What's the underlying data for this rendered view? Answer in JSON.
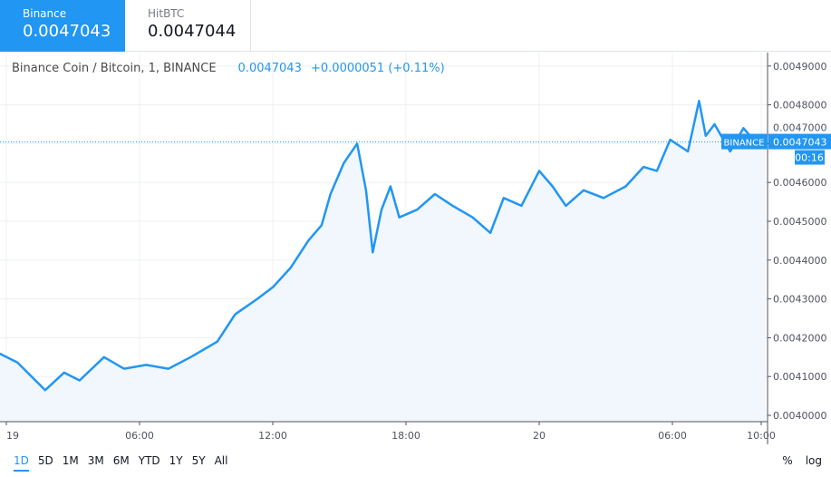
{
  "exchanges": [
    {
      "name": "Binance",
      "price": "0.0047043",
      "active": true
    },
    {
      "name": "HitBTC",
      "price": "0.0047044",
      "active": false
    }
  ],
  "legend": {
    "symbol": "Binance Coin / Bitcoin, 1, BINANCE",
    "last": "0.0047043",
    "change": "+0.0000051 (+0.11%)"
  },
  "price_label": {
    "exchange": "BINANCE",
    "value": "0.0047043",
    "countdown": "00:16"
  },
  "ranges": [
    "1D",
    "5D",
    "1M",
    "3M",
    "6M",
    "YTD",
    "1Y",
    "5Y",
    "All"
  ],
  "selected_range": "1D",
  "scale_options": [
    "%",
    "log"
  ],
  "colors": {
    "line": "#2196f3",
    "fill": "#f1f7fd",
    "grid": "#eef0f3"
  },
  "chart_data": {
    "type": "area",
    "ylim": [
      0.00398,
      0.00494
    ],
    "y_ticks": [
      "0.0040000",
      "0.0041000",
      "0.0042000",
      "0.0043000",
      "0.0044000",
      "0.0045000",
      "0.0046000",
      "0.0047000",
      "0.0048000",
      "0.0049000"
    ],
    "x_ticks": [
      {
        "label": "19",
        "t": "19 00:00"
      },
      {
        "label": "06:00",
        "t": "19 06:00"
      },
      {
        "label": "12:00",
        "t": "19 12:00"
      },
      {
        "label": "18:00",
        "t": "19 18:00"
      },
      {
        "label": "20",
        "t": "20 00:00"
      },
      {
        "label": "06:00",
        "t": "20 06:00"
      },
      {
        "label": "10:00",
        "t": "20 10:00"
      }
    ],
    "points": [
      [
        "18 23:42",
        0.004159
      ],
      [
        "19 00:30",
        0.004136
      ],
      [
        "19 01:45",
        0.004065
      ],
      [
        "19 02:36",
        0.00411
      ],
      [
        "19 03:18",
        0.00409
      ],
      [
        "19 04:24",
        0.00415
      ],
      [
        "19 05:18",
        0.00412
      ],
      [
        "19 06:18",
        0.00413
      ],
      [
        "19 07:18",
        0.00412
      ],
      [
        "19 08:18",
        0.00415
      ],
      [
        "19 09:30",
        0.00419
      ],
      [
        "19 10:18",
        0.00426
      ],
      [
        "19 11:18",
        0.0043
      ],
      [
        "19 12:00",
        0.00433
      ],
      [
        "19 12:48",
        0.00438
      ],
      [
        "19 13:36",
        0.00445
      ],
      [
        "19 14:12",
        0.00449
      ],
      [
        "19 14:36",
        0.00457
      ],
      [
        "19 15:12",
        0.00465
      ],
      [
        "19 15:48",
        0.0047
      ],
      [
        "19 16:12",
        0.00458
      ],
      [
        "19 16:30",
        0.00442
      ],
      [
        "19 16:54",
        0.00453
      ],
      [
        "19 17:18",
        0.00459
      ],
      [
        "19 17:42",
        0.00451
      ],
      [
        "19 18:30",
        0.00453
      ],
      [
        "19 19:18",
        0.00457
      ],
      [
        "19 20:06",
        0.00454
      ],
      [
        "19 21:00",
        0.00451
      ],
      [
        "19 21:48",
        0.00447
      ],
      [
        "19 22:24",
        0.00456
      ],
      [
        "19 23:12",
        0.00454
      ],
      [
        "20 00:00",
        0.00463
      ],
      [
        "20 00:36",
        0.00459
      ],
      [
        "20 01:12",
        0.00454
      ],
      [
        "20 02:00",
        0.00458
      ],
      [
        "20 02:54",
        0.00456
      ],
      [
        "20 03:54",
        0.00459
      ],
      [
        "20 04:42",
        0.00464
      ],
      [
        "20 05:18",
        0.00463
      ],
      [
        "20 05:54",
        0.00471
      ],
      [
        "20 06:42",
        0.00468
      ],
      [
        "20 07:12",
        0.00481
      ],
      [
        "20 07:30",
        0.00472
      ],
      [
        "20 07:54",
        0.00475
      ],
      [
        "20 08:36",
        0.00468
      ],
      [
        "20 09:12",
        0.00474
      ],
      [
        "20 09:48",
        0.0047
      ],
      [
        "20 10:12",
        0.0047043
      ]
    ]
  }
}
